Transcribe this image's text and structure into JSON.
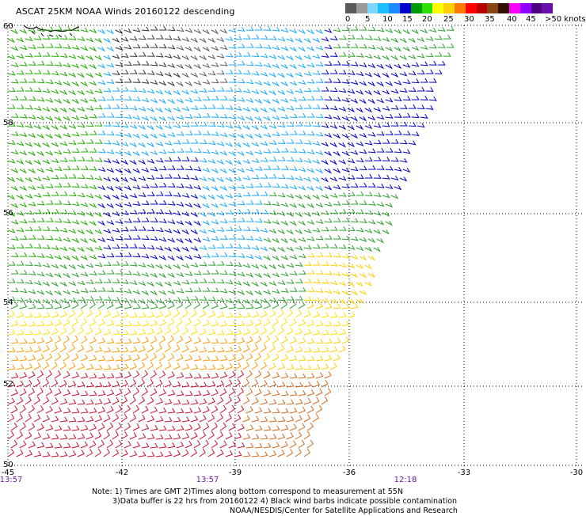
{
  "title": "ASCAT 25KM NOAA Winds 20160122 descending",
  "legend": {
    "labels": [
      "0",
      "5",
      "10",
      "15",
      "20",
      "25",
      "30",
      "35",
      "40",
      "45",
      ">50 knots"
    ],
    "colors": [
      "#5a5a5a",
      "#9a9a9a",
      "#7fd7ff",
      "#19bfff",
      "#1c8bff",
      "#0000d0",
      "#009a00",
      "#2ce000",
      "#ffff00",
      "#ffd000",
      "#ff7a00",
      "#ff0000",
      "#b80000",
      "#8b4513",
      "#301000",
      "#ff00ff",
      "#9000ff",
      "#4b0082",
      "#6a0dad"
    ]
  },
  "axes": {
    "lat_labels": [
      "60",
      "58",
      "56",
      "54",
      "52",
      "50"
    ],
    "lon_labels": [
      "-45",
      "-42",
      "-39",
      "-36",
      "-33",
      "-30"
    ],
    "times": [
      "13:57",
      "13:57",
      "12:18"
    ]
  },
  "notes": {
    "line1": "Note: 1) Times are GMT 2)Times along bottom correspond to measurement at 55N",
    "line2": "3)Data buffer is 22 hrs from 20160122 4) Black wind barbs indicate possible contamination",
    "line3": "NOAA/NESDIS/Center for Satellite Applications and Research"
  }
}
